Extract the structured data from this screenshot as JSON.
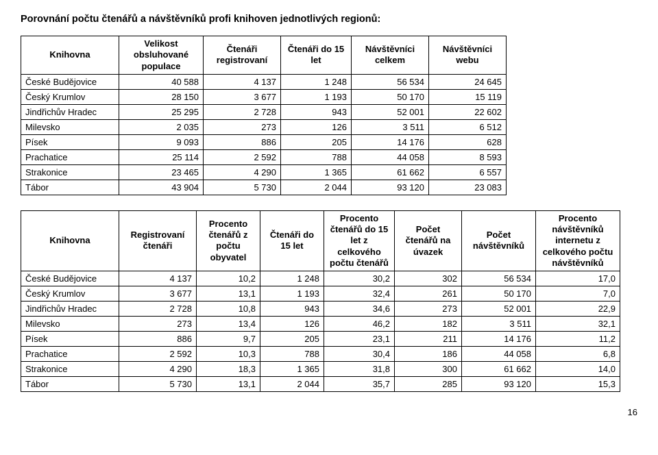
{
  "title": "Porovnání počtu čtenářů a návštěvníků profi knihoven jednotlivých regionů:",
  "page_number": "16",
  "table1": {
    "headers": [
      "Knihovna",
      "Velikost obsluhované populace",
      "Čtenáři registrovaní",
      "Čtenáři do 15 let",
      "Návštěvníci celkem",
      "Návštěvníci webu"
    ],
    "col_widths": [
      "130px",
      "110px",
      "100px",
      "90px",
      "100px",
      "100px"
    ],
    "rows": [
      [
        "České Budějovice",
        "40 588",
        "4 137",
        "1 248",
        "56 534",
        "24 645"
      ],
      [
        "Český Krumlov",
        "28 150",
        "3 677",
        "1 193",
        "50 170",
        "15 119"
      ],
      [
        "Jindřichův Hradec",
        "25 295",
        "2 728",
        "943",
        "52 001",
        "22 602"
      ],
      [
        "Milevsko",
        "2 035",
        "273",
        "126",
        "3 511",
        "6 512"
      ],
      [
        "Písek",
        "9 093",
        "886",
        "205",
        "14 176",
        "628"
      ],
      [
        "Prachatice",
        "25 114",
        "2 592",
        "788",
        "44 058",
        "8 593"
      ],
      [
        "Strakonice",
        "23 465",
        "4 290",
        "1 365",
        "61 662",
        "6 557"
      ],
      [
        "Tábor",
        "43 904",
        "5 730",
        "2 044",
        "93 120",
        "23 083"
      ]
    ]
  },
  "table2": {
    "headers": [
      "Knihovna",
      "Registrovaní čtenáři",
      "Procento čtenářů z počtu obyvatel",
      "Čtenáři do 15 let",
      "Procento čtenářů do 15 let z celkového počtu čtenářů",
      "Počet čtenářů na úvazek",
      "Počet návštěvníků",
      "Procento návštěvníků internetu z celkového počtu návštěvníků"
    ],
    "col_widths": [
      "130px",
      "100px",
      "80px",
      "80px",
      "90px",
      "85px",
      "95px",
      "110px"
    ],
    "rows": [
      [
        "České Budějovice",
        "4 137",
        "10,2",
        "1 248",
        "30,2",
        "302",
        "56 534",
        "17,0"
      ],
      [
        "Český Krumlov",
        "3 677",
        "13,1",
        "1 193",
        "32,4",
        "261",
        "50 170",
        "7,0"
      ],
      [
        "Jindřichův Hradec",
        "2 728",
        "10,8",
        "943",
        "34,6",
        "273",
        "52 001",
        "22,9"
      ],
      [
        "Milevsko",
        "273",
        "13,4",
        "126",
        "46,2",
        "182",
        "3 511",
        "32,1"
      ],
      [
        "Písek",
        "886",
        "9,7",
        "205",
        "23,1",
        "211",
        "14 176",
        "11,2"
      ],
      [
        "Prachatice",
        "2 592",
        "10,3",
        "788",
        "30,4",
        "186",
        "44 058",
        "6,8"
      ],
      [
        "Strakonice",
        "4 290",
        "18,3",
        "1 365",
        "31,8",
        "300",
        "61 662",
        "14,0"
      ],
      [
        "Tábor",
        "5 730",
        "13,1",
        "2 044",
        "35,7",
        "285",
        "93 120",
        "15,3"
      ]
    ]
  }
}
